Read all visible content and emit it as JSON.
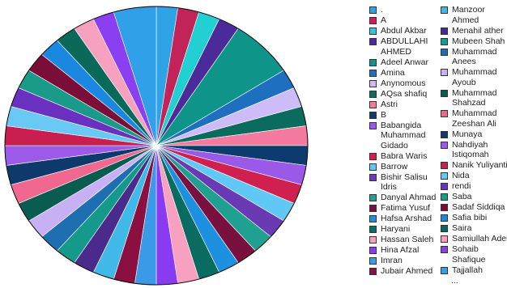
{
  "chart_data": {
    "type": "pie",
    "series": [
      {
        "name": ".",
        "color": "#2ea3e6",
        "values": [
          1
        ]
      },
      {
        "name": "A",
        "color": "#c2245a",
        "values": [
          1
        ]
      },
      {
        "name": "Abdul Akbar",
        "color": "#22cfd3",
        "values": [
          1
        ]
      },
      {
        "name": "ABDULLAHI AHMED",
        "color": "#4b2a9a",
        "values": [
          1
        ]
      },
      {
        "name": "Adeel Anwar",
        "color": "#0e9488",
        "values": [
          3
        ]
      },
      {
        "name": "Amina",
        "color": "#1f6fc0",
        "values": [
          1
        ]
      },
      {
        "name": "Anynomous",
        "color": "#cdbcf7",
        "values": [
          1
        ]
      },
      {
        "name": "AQsa shafiq",
        "color": "#0a6b5e",
        "values": [
          1
        ]
      },
      {
        "name": "Astri",
        "color": "#f47aa0",
        "values": [
          1
        ]
      },
      {
        "name": "B",
        "color": "#0d3b6e",
        "values": [
          1
        ]
      },
      {
        "name": "Babangida Muhammad Gidado",
        "color": "#9b59e8",
        "values": [
          1
        ]
      },
      {
        "name": "Babra Waris",
        "color": "#d02050",
        "values": [
          1
        ]
      },
      {
        "name": "Barrow",
        "color": "#5fc8f5",
        "values": [
          1
        ]
      },
      {
        "name": "Bishir Salisu Idris",
        "color": "#6a3ab5",
        "values": [
          1
        ]
      },
      {
        "name": "Danyal Ahmad",
        "color": "#20a090",
        "values": [
          1
        ]
      },
      {
        "name": "Fatima Yusuf",
        "color": "#7a1040",
        "values": [
          1
        ]
      },
      {
        "name": "Hafsa Arshad",
        "color": "#1e90e0",
        "values": [
          1
        ]
      },
      {
        "name": "Haryani",
        "color": "#0a6b60",
        "values": [
          1
        ]
      },
      {
        "name": "Hassan Saleh",
        "color": "#f8a0c0",
        "values": [
          1
        ]
      },
      {
        "name": "Hina Afzal",
        "color": "#8a3af0",
        "values": [
          1
        ]
      },
      {
        "name": "Imran",
        "color": "#3a9ae8",
        "values": [
          1
        ]
      },
      {
        "name": "Jubair Ahmed",
        "color": "#8b1040",
        "values": [
          1
        ]
      },
      {
        "name": "Manzoor Ahmed",
        "color": "#40b8e8",
        "values": [
          1
        ]
      },
      {
        "name": "Menahil ather",
        "color": "#4a2a8a",
        "values": [
          1
        ]
      },
      {
        "name": "Mubeen Shah",
        "color": "#15998a",
        "values": [
          1
        ]
      },
      {
        "name": "Muhammad Anees",
        "color": "#1e6fb0",
        "values": [
          1
        ]
      },
      {
        "name": "Muhammad Ayoub",
        "color": "#c8b0f5",
        "values": [
          1
        ]
      },
      {
        "name": "Muhammad Shahzad",
        "color": "#0a5b50",
        "values": [
          1
        ]
      },
      {
        "name": "Muhammad Zeeshan Ali",
        "color": "#f06890",
        "values": [
          1
        ]
      },
      {
        "name": "Munaya",
        "color": "#0d3a6a",
        "values": [
          1
        ]
      },
      {
        "name": "Nahdiyah Istiqomah",
        "color": "#9b5ae8",
        "values": [
          1
        ]
      },
      {
        "name": "Nanik Yuliyanti",
        "color": "#c81e50",
        "values": [
          1
        ]
      },
      {
        "name": "Nida",
        "color": "#6ac8f5",
        "values": [
          1
        ]
      },
      {
        "name": "rendi",
        "color": "#6a30c0",
        "values": [
          1
        ]
      },
      {
        "name": "Saba",
        "color": "#1a9a88",
        "values": [
          1
        ]
      },
      {
        "name": "Sadaf Siddiqa",
        "color": "#7a0e38",
        "values": [
          1
        ]
      },
      {
        "name": "Safia bibi",
        "color": "#1a88e0",
        "values": [
          1
        ]
      },
      {
        "name": "Saira",
        "color": "#0a6a5a",
        "values": [
          1
        ]
      },
      {
        "name": "Samiullah Adel",
        "color": "#f8a0c0",
        "values": [
          1
        ]
      },
      {
        "name": "Sohaib Shafique",
        "color": "#8a40f0",
        "values": [
          1
        ]
      },
      {
        "name": "Tajjallah",
        "color": "#30a0e8",
        "values": [
          2
        ]
      }
    ],
    "legend_more": "..."
  }
}
